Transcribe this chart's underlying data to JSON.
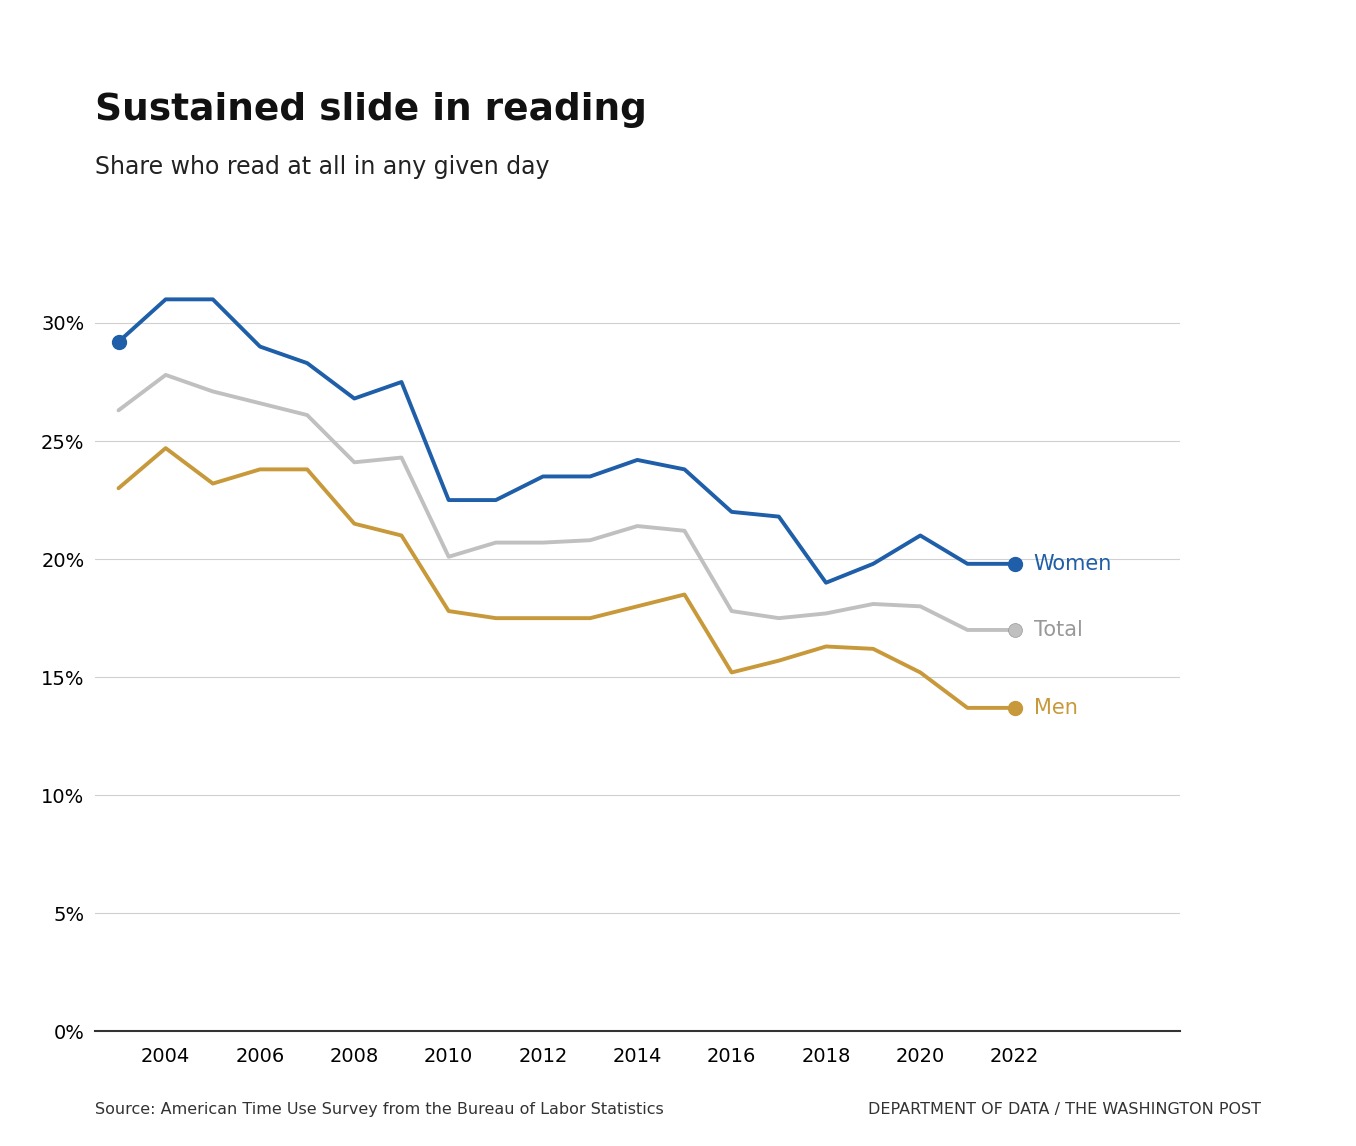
{
  "title": "Sustained slide in reading",
  "subtitle": "Share who read at all in any given day",
  "source": "Source: American Time Use Survey from the Bureau of Labor Statistics",
  "credit": "DEPARTMENT OF DATA / THE WASHINGTON POST",
  "years": [
    2003,
    2004,
    2005,
    2006,
    2007,
    2008,
    2009,
    2010,
    2011,
    2012,
    2013,
    2014,
    2015,
    2016,
    2017,
    2018,
    2019,
    2020,
    2021,
    2022
  ],
  "women": [
    29.2,
    31.0,
    31.0,
    29.0,
    28.3,
    26.8,
    27.5,
    22.5,
    22.5,
    23.5,
    23.5,
    24.2,
    23.8,
    22.0,
    21.8,
    19.0,
    19.8,
    21.0,
    19.8,
    19.8
  ],
  "men": [
    23.0,
    24.7,
    23.2,
    23.8,
    23.8,
    21.5,
    21.0,
    17.8,
    17.5,
    17.5,
    17.5,
    18.0,
    18.5,
    15.2,
    15.7,
    16.3,
    16.2,
    15.2,
    13.7,
    13.7
  ],
  "total": [
    26.3,
    27.8,
    27.1,
    26.6,
    26.1,
    24.1,
    24.3,
    20.1,
    20.7,
    20.7,
    20.8,
    21.4,
    21.2,
    17.8,
    17.5,
    17.7,
    18.1,
    18.0,
    17.0,
    17.0
  ],
  "women_color": "#1f5ea8",
  "men_color": "#c8993a",
  "total_color": "#c0c0c0",
  "background_color": "#ffffff",
  "yticks": [
    0,
    5,
    10,
    15,
    20,
    25,
    30
  ],
  "xticks": [
    2004,
    2006,
    2008,
    2010,
    2012,
    2014,
    2016,
    2018,
    2020,
    2022
  ],
  "ylim": [
    0,
    33
  ],
  "xlim": [
    2002.5,
    2025.5
  ]
}
